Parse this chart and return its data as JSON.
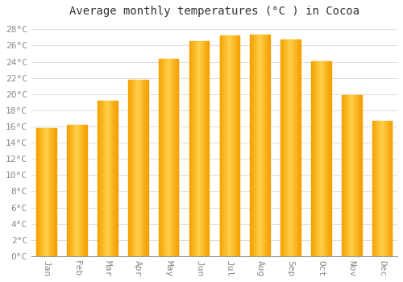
{
  "title": "Average monthly temperatures (°C ) in Cocoa",
  "months": [
    "Jan",
    "Feb",
    "Mar",
    "Apr",
    "May",
    "Jun",
    "Jul",
    "Aug",
    "Sep",
    "Oct",
    "Nov",
    "Dec"
  ],
  "values": [
    15.8,
    16.2,
    19.2,
    21.8,
    24.4,
    26.5,
    27.2,
    27.3,
    26.7,
    24.1,
    19.9,
    16.7
  ],
  "bar_color_center": "#FFD04B",
  "bar_color_edge": "#F5A800",
  "background_color": "#FFFFFF",
  "plot_bg_color": "#FFFFFF",
  "grid_color": "#DDDDDD",
  "ylim": [
    0,
    29
  ],
  "ytick_step": 2,
  "title_fontsize": 10,
  "tick_fontsize": 8,
  "tick_label_color": "#888888",
  "title_color": "#333333",
  "bar_width": 0.65
}
